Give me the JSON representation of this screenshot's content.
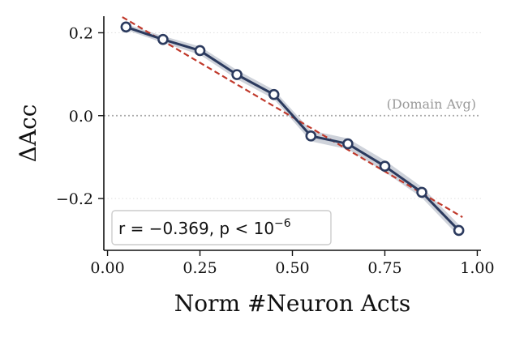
{
  "chart_data": {
    "type": "line",
    "title": "",
    "xlabel": "Norm #Neuron Acts",
    "ylabel": "ΔAcc",
    "xlim": [
      -0.01,
      1.01
    ],
    "ylim": [
      -0.325,
      0.24
    ],
    "xticks": [
      0.0,
      0.25,
      0.5,
      0.75,
      1.0
    ],
    "xtick_labels": [
      "0.00",
      "0.25",
      "0.50",
      "0.75",
      "1.00"
    ],
    "yticks": [
      0.2,
      0.0,
      -0.2
    ],
    "ytick_labels": [
      "0.2",
      "0.0",
      "−0.2"
    ],
    "grid": "horizontal dotted at y ticks",
    "series": [
      {
        "x": [
          0.05,
          0.15,
          0.25,
          0.35,
          0.45,
          0.55,
          0.65,
          0.75,
          0.85,
          0.95
        ],
        "values": [
          0.214,
          0.184,
          0.157,
          0.099,
          0.051,
          -0.049,
          -0.068,
          -0.122,
          -0.185,
          -0.277
        ],
        "band_halfwidth": [
          0.007,
          0.008,
          0.01,
          0.011,
          0.011,
          0.013,
          0.013,
          0.014,
          0.013,
          0.014
        ],
        "color": "#2b3a5e",
        "band_color": "#c9cdd6"
      }
    ],
    "trendline": {
      "style": "dashed",
      "color": "#c0392b",
      "x": [
        0.04,
        0.96
      ],
      "values": [
        0.238,
        -0.245
      ]
    },
    "reference_line": {
      "y": 0.0,
      "label": "(Domain Avg)",
      "color": "#aaaaaa"
    },
    "stats_box": {
      "label_main": "r = −0.369, p < 10",
      "label_exp": "−6",
      "placement": "bottom-left"
    }
  }
}
